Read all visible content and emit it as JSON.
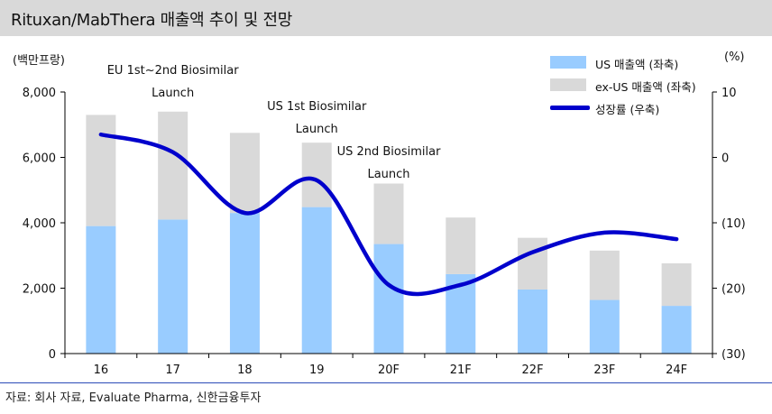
{
  "title": "Rituxan/MabThera 매출액 추이 및 전망",
  "left_unit": "(백만프랑)",
  "right_unit": "(%)",
  "source": "자료: 회사 자료, Evaluate Pharma, 신한금융투자",
  "colors": {
    "us_bar": "#99ccff",
    "exus_bar": "#d9d9d9",
    "growth_line": "#0000cc",
    "title_bg": "#d9d9d9"
  },
  "annotations": [
    {
      "lines": [
        "EU 1st~2nd  Biosimilar",
        "Launch"
      ],
      "category": "17"
    },
    {
      "lines": [
        "US 1st Biosimilar",
        "Launch"
      ],
      "category": "19"
    },
    {
      "lines": [
        "US 2nd  Biosimilar",
        "Launch"
      ],
      "category": "20F"
    }
  ],
  "chart_data": {
    "type": "bar",
    "categories": [
      "16",
      "17",
      "18",
      "19",
      "20F",
      "21F",
      "22F",
      "23F",
      "24F"
    ],
    "series": [
      {
        "name": "US 매출액 (좌축)",
        "type": "stacked-bar",
        "axis": "left",
        "values": [
          3900,
          4100,
          4300,
          4480,
          3350,
          2430,
          1960,
          1640,
          1460
        ]
      },
      {
        "name": "ex-US 매출액 (좌축)",
        "type": "stacked-bar",
        "axis": "left",
        "values": [
          3400,
          3300,
          2450,
          1970,
          1850,
          1730,
          1580,
          1510,
          1300
        ]
      },
      {
        "name": "성장률 (우축)",
        "type": "line",
        "axis": "right",
        "values": [
          3.5,
          0.8,
          -8.5,
          -3.5,
          -19.5,
          -19.5,
          -14.5,
          -11.5,
          -12.5
        ]
      }
    ],
    "yleft": {
      "ylim": [
        0,
        8000
      ],
      "ticks": [
        "0",
        "2,000",
        "4,000",
        "6,000",
        "8,000"
      ],
      "tick_values": [
        0,
        2000,
        4000,
        6000,
        8000
      ]
    },
    "yright": {
      "ylim": [
        -30,
        10
      ],
      "ticks": [
        "(30)",
        "(20)",
        "(10)",
        "0",
        "10"
      ],
      "tick_values": [
        -30,
        -20,
        -10,
        0,
        10
      ]
    },
    "legend": "top-right",
    "grid": false
  }
}
